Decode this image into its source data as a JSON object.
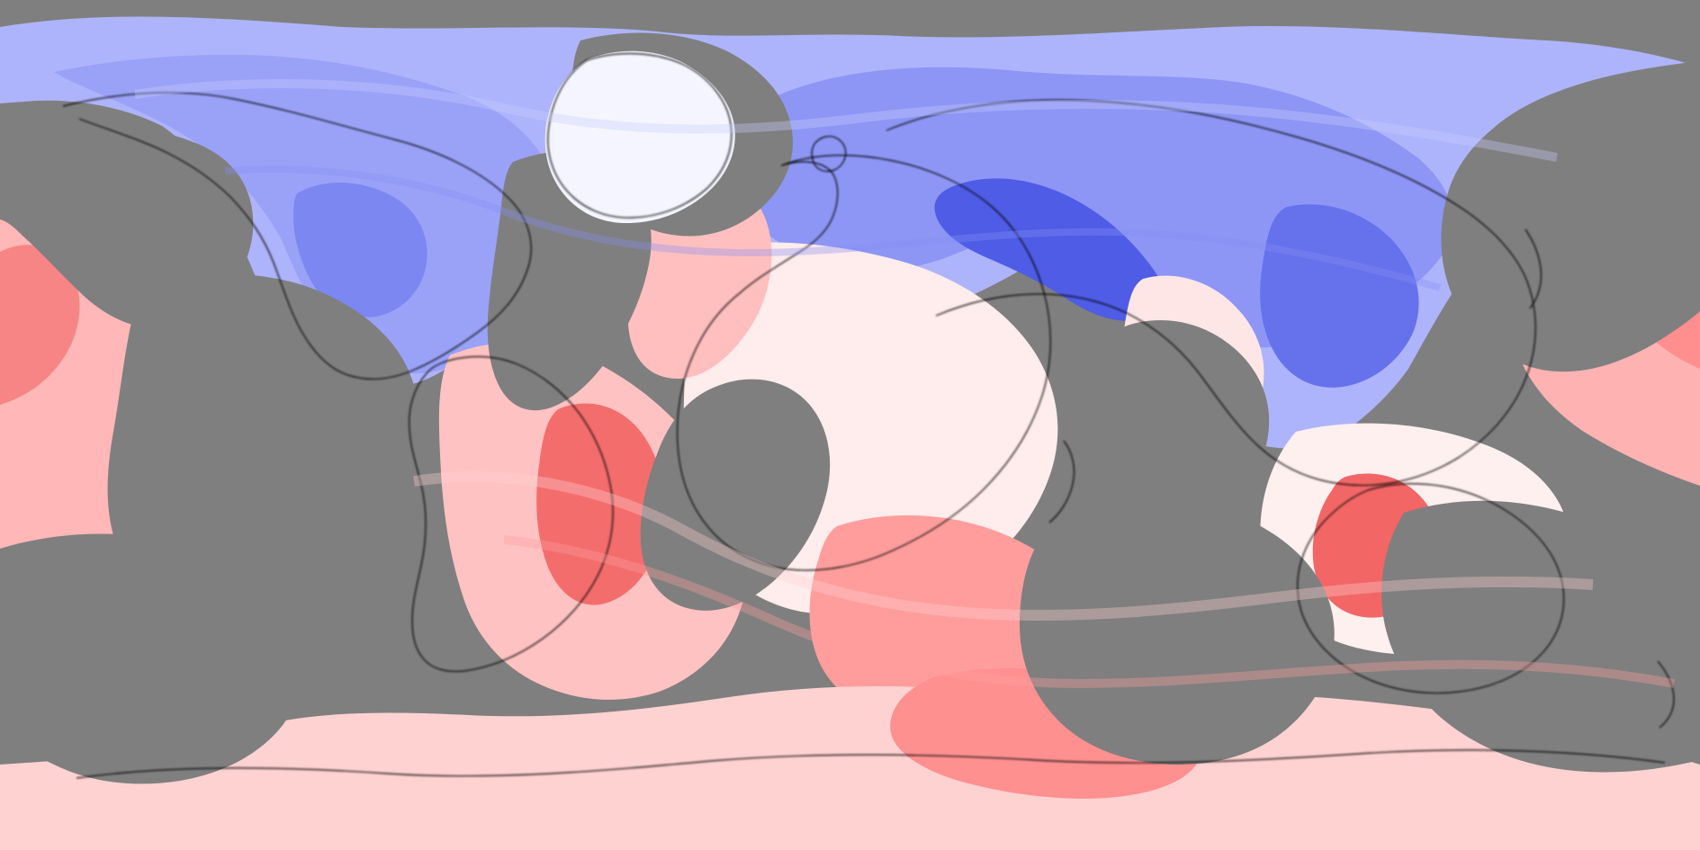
{
  "map": {
    "type": "global-anomaly-map",
    "projection": "equirectangular",
    "missing_data_color": "#7f7f7f",
    "palette": {
      "deep_blue": "#3340d9",
      "blue": "#6f79ef",
      "light_blue": "#aeb4fb",
      "pale_blue": "#e8ebff",
      "white": "#ffffff",
      "pale_red": "#ffe4e4",
      "light_red": "#ffc4c4",
      "red": "#ff9b9b",
      "deep_red": "#f25656"
    },
    "labels": []
  }
}
